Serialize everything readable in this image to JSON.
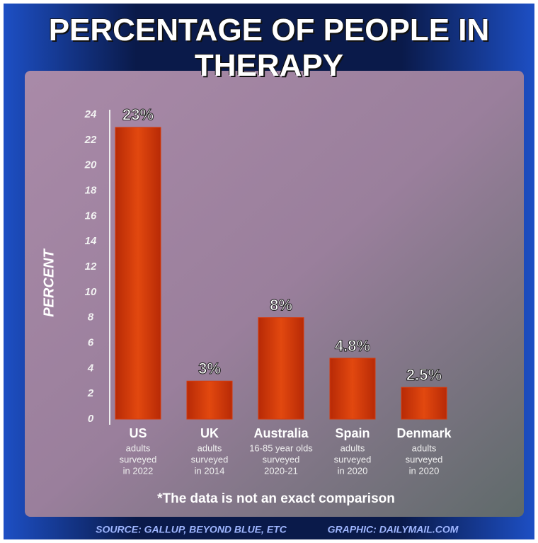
{
  "chart_data": {
    "type": "bar",
    "title": "PERCENTAGE OF PEOPLE IN THERAPY",
    "y_label": "PERCENT",
    "categories": [
      "US",
      "UK",
      "Australia",
      "Spain",
      "Denmark"
    ],
    "category_notes": [
      [
        "adults",
        "surveyed",
        "in 2022"
      ],
      [
        "adults",
        "surveyed",
        "in 2014"
      ],
      [
        "16-85 year olds",
        "surveyed",
        "2020-21"
      ],
      [
        "adults",
        "surveyed",
        "in 2020"
      ],
      [
        "adults",
        "surveyed",
        "in 2020"
      ]
    ],
    "values": [
      23,
      3,
      8,
      4.8,
      2.5
    ],
    "value_labels": [
      "23%",
      "3%",
      "8%",
      "4.8%",
      "2.5%"
    ],
    "color": "#d63a0c",
    "ylim": [
      0,
      24
    ],
    "yticks": [
      0,
      2,
      4,
      6,
      8,
      10,
      12,
      14,
      16,
      18,
      20,
      22,
      24
    ],
    "footnote": "*The data is not an exact comparison",
    "source": "SOURCE: GALLUP, BEYOND BLUE, ETC",
    "credit": "GRAPHIC: DAILYMAIL.COM"
  }
}
